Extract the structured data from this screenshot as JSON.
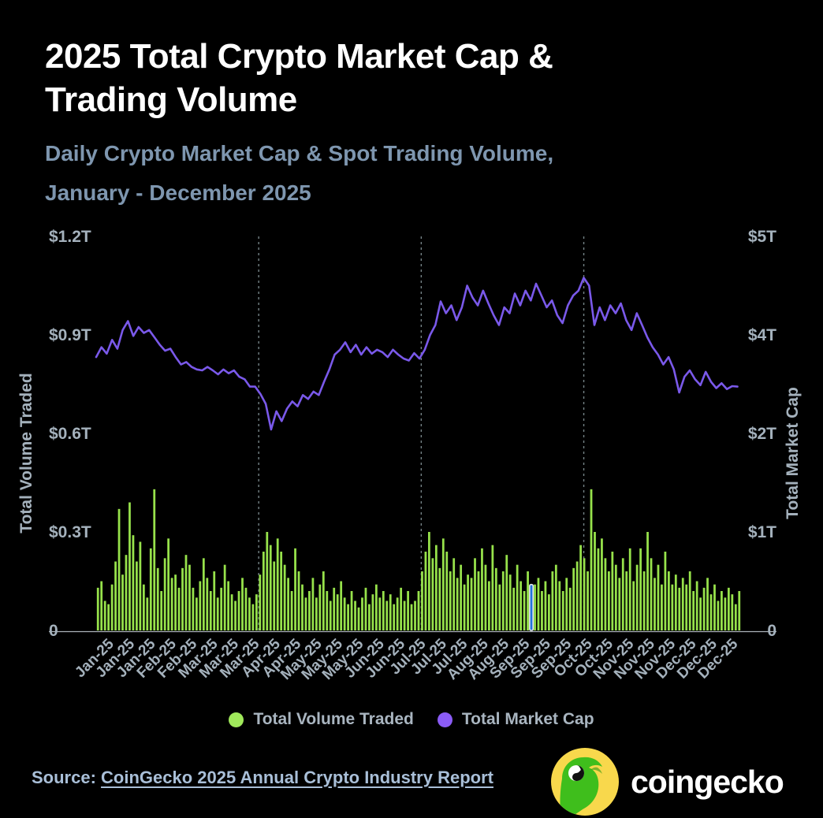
{
  "header": {
    "title_lines": [
      "2025 Total Crypto Market Cap &",
      "Trading Volume"
    ],
    "subtitle_lines": [
      "Daily Crypto Market Cap & Spot Trading Volume,",
      "January - December 2025"
    ]
  },
  "chart_data": {
    "type": "combo",
    "title": "2025 Total Crypto Market Cap & Trading Volume",
    "x_axis": {
      "total_days": 365,
      "gridline_days": [
        92,
        184,
        276
      ],
      "tick_labels": [
        "Jan-25",
        "Jan-25",
        "Jan-25",
        "Feb-25",
        "Feb-25",
        "Mar-25",
        "Mar-25",
        "Mar-25",
        "Apr-25",
        "Apr-25",
        "May-25",
        "May-25",
        "May-25",
        "Jun-25",
        "Jun-25",
        "Jul-25",
        "Jul-25",
        "Jul-25",
        "Aug-25",
        "Aug-25",
        "Sep-25",
        "Sep-25",
        "Sep-25",
        "Oct-25",
        "Oct-25",
        "Nov-25",
        "Nov-25",
        "Nov-25",
        "Dec-25",
        "Dec-25",
        "Dec-25"
      ]
    },
    "left_axis": {
      "label": "Total Volume Traded",
      "tick_labels": [
        "0",
        "$0.3T",
        "$0.6T",
        "$0.9T",
        "$1.2T"
      ],
      "tick_values": [
        0,
        0.3,
        0.6,
        0.9,
        1.2
      ],
      "max": 1.2,
      "unit": "trillion USD"
    },
    "right_axis": {
      "label": "Total Market Cap",
      "tick_labels": [
        "0",
        "$1T",
        "$2T",
        "$4T",
        "$5T"
      ],
      "tick_values": [
        0,
        1,
        2,
        4,
        5
      ],
      "unit": "trillion USD"
    },
    "series": [
      {
        "name": "Total Volume Traded",
        "type": "bar",
        "axis": "left",
        "color": "#97E24B",
        "highlight": {
          "index": 123,
          "color": "#2173DB",
          "stroke": "#E4E8EB"
        },
        "values_trillions": [
          0.13,
          0.15,
          0.09,
          0.08,
          0.14,
          0.21,
          0.37,
          0.17,
          0.23,
          0.39,
          0.29,
          0.21,
          0.27,
          0.14,
          0.1,
          0.25,
          0.43,
          0.19,
          0.12,
          0.22,
          0.28,
          0.16,
          0.17,
          0.13,
          0.19,
          0.23,
          0.2,
          0.13,
          0.1,
          0.15,
          0.22,
          0.16,
          0.12,
          0.18,
          0.1,
          0.13,
          0.2,
          0.15,
          0.11,
          0.09,
          0.12,
          0.16,
          0.13,
          0.1,
          0.08,
          0.11,
          0.17,
          0.24,
          0.3,
          0.26,
          0.21,
          0.28,
          0.24,
          0.2,
          0.16,
          0.12,
          0.25,
          0.18,
          0.14,
          0.1,
          0.12,
          0.16,
          0.1,
          0.14,
          0.18,
          0.12,
          0.09,
          0.13,
          0.11,
          0.15,
          0.1,
          0.08,
          0.12,
          0.09,
          0.07,
          0.1,
          0.13,
          0.08,
          0.11,
          0.14,
          0.1,
          0.12,
          0.09,
          0.11,
          0.08,
          0.1,
          0.13,
          0.09,
          0.12,
          0.08,
          0.09,
          0.12,
          0.18,
          0.24,
          0.3,
          0.22,
          0.26,
          0.19,
          0.28,
          0.24,
          0.18,
          0.22,
          0.16,
          0.2,
          0.14,
          0.17,
          0.16,
          0.22,
          0.18,
          0.25,
          0.2,
          0.15,
          0.26,
          0.19,
          0.14,
          0.18,
          0.23,
          0.17,
          0.13,
          0.2,
          0.15,
          0.12,
          0.18,
          0.14,
          0.14,
          0.16,
          0.12,
          0.15,
          0.11,
          0.18,
          0.2,
          0.15,
          0.12,
          0.16,
          0.13,
          0.19,
          0.21,
          0.26,
          0.22,
          0.18,
          0.43,
          0.3,
          0.25,
          0.28,
          0.22,
          0.18,
          0.24,
          0.2,
          0.16,
          0.22,
          0.18,
          0.25,
          0.15,
          0.2,
          0.25,
          0.18,
          0.3,
          0.22,
          0.16,
          0.2,
          0.14,
          0.24,
          0.18,
          0.14,
          0.17,
          0.13,
          0.16,
          0.14,
          0.18,
          0.12,
          0.15,
          0.1,
          0.13,
          0.16,
          0.11,
          0.14,
          0.09,
          0.12,
          0.1,
          0.13,
          0.11,
          0.08,
          0.12
        ]
      },
      {
        "name": "Total Market Cap",
        "type": "line",
        "axis": "right",
        "color": "#7A59EA",
        "day_step": 3,
        "values_trillions": [
          3.55,
          3.75,
          3.62,
          3.9,
          3.72,
          4.05,
          4.14,
          3.98,
          4.08,
          4.02,
          4.05,
          3.95,
          3.8,
          3.68,
          3.72,
          3.55,
          3.4,
          3.45,
          3.35,
          3.3,
          3.28,
          3.35,
          3.28,
          3.2,
          3.3,
          3.22,
          3.28,
          3.15,
          3.1,
          2.95,
          2.95,
          2.8,
          2.6,
          2.08,
          2.45,
          2.25,
          2.5,
          2.65,
          2.55,
          2.78,
          2.7,
          2.85,
          2.78,
          3.05,
          3.3,
          3.6,
          3.7,
          3.85,
          3.65,
          3.8,
          3.6,
          3.75,
          3.62,
          3.7,
          3.65,
          3.55,
          3.7,
          3.6,
          3.52,
          3.48,
          3.63,
          3.52,
          3.7,
          4.0,
          4.1,
          4.34,
          4.22,
          4.3,
          4.15,
          4.28,
          4.5,
          4.38,
          4.3,
          4.45,
          4.32,
          4.2,
          4.1,
          4.28,
          4.22,
          4.42,
          4.3,
          4.45,
          4.35,
          4.52,
          4.4,
          4.28,
          4.35,
          4.2,
          4.12,
          4.3,
          4.4,
          4.45,
          4.58,
          4.5,
          4.1,
          4.28,
          4.15,
          4.3,
          4.22,
          4.32,
          4.15,
          4.05,
          4.22,
          4.1,
          3.95,
          3.75,
          3.6,
          3.4,
          3.55,
          3.3,
          2.83,
          3.15,
          3.28,
          3.1,
          2.98,
          3.25,
          3.05,
          2.92,
          3.02,
          2.9,
          2.96,
          2.95
        ]
      }
    ],
    "legend_position": "bottom-center",
    "grid": "vertical-dashed-quarterly"
  },
  "legend": {
    "items": [
      {
        "label": "Total Volume Traded",
        "color": "#A0E95B"
      },
      {
        "label": "Total Market Cap",
        "color": "#8B5CF6"
      }
    ]
  },
  "footer": {
    "source_label": "Source:",
    "source_link_text": "CoinGecko 2025 Annual Crypto Industry Report",
    "brand_name": "coingecko"
  },
  "colors": {
    "background": "#000000",
    "title": "#FFFFFF",
    "subtitle": "#7E96AF",
    "axis_text": "#A4B1BC",
    "bar_green": "#97E24B",
    "line_purple": "#7A59EA",
    "highlight_blue": "#2173DB",
    "gridline": "#8A9A9E",
    "baseline": "#C9D3DB",
    "logo_yellow": "#F8D84C",
    "logo_green": "#3FBE1C"
  }
}
